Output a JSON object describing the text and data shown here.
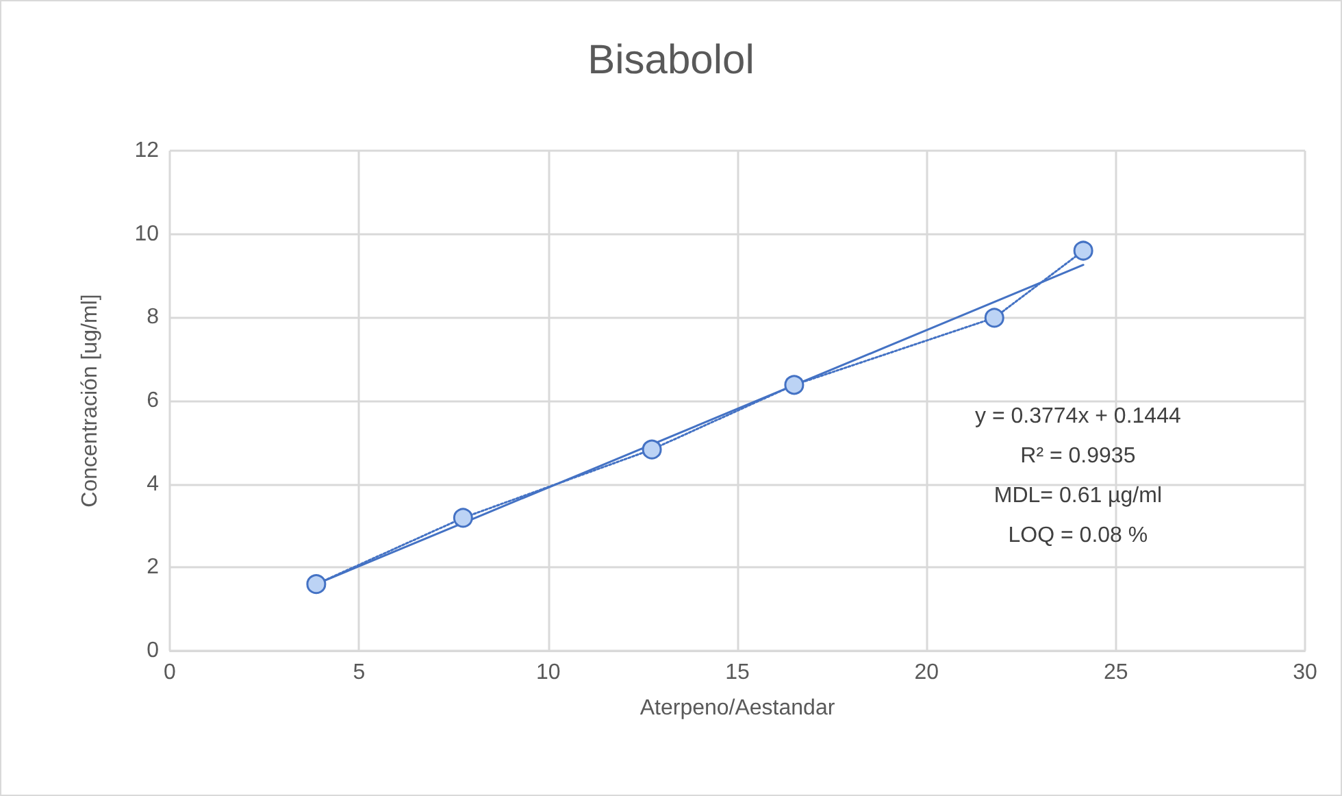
{
  "chart_data": {
    "type": "line",
    "title": "Bisabolol",
    "xlabel": "Aterpeno/Aestandar",
    "ylabel": "Concentración [ug/ml]",
    "x": [
      3.87,
      7.75,
      12.74,
      16.5,
      21.79,
      24.14
    ],
    "series": [
      {
        "color": "#4472c4",
        "marker": "circle",
        "line_style": "dotted",
        "values": [
          1.6,
          3.19,
          4.83,
          6.38,
          7.99,
          9.6
        ]
      },
      {
        "color": "#4472c4",
        "line_style": "solid",
        "x": [
          3.87,
          24.14
        ],
        "values": [
          1.6,
          9.26
        ]
      }
    ],
    "xlim": [
      0,
      30
    ],
    "xticks": [
      0,
      5,
      10,
      15,
      20,
      25,
      30
    ],
    "ylim": [
      0,
      12
    ],
    "yticks": [
      0,
      2,
      4,
      6,
      8,
      10,
      12
    ],
    "grid": true,
    "annotations": [
      "y = 0.3774x + 0.1444",
      "R² = 0.9935",
      "MDL= 0.61 µg/ml",
      "LOQ = 0.08 %"
    ]
  }
}
